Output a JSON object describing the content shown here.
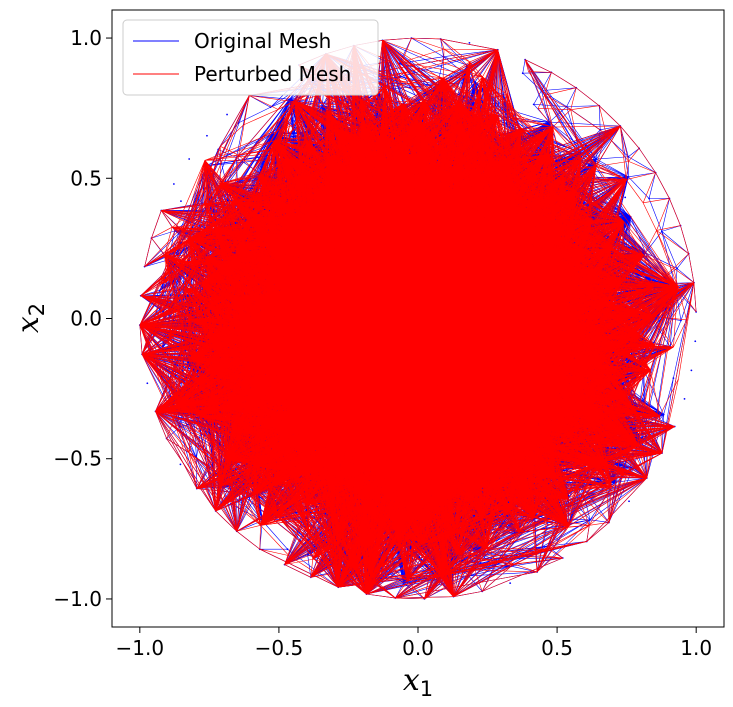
{
  "chart_data": {
    "type": "line",
    "title": "",
    "xlabel": "x",
    "xlabel_sub": "1",
    "ylabel": "x",
    "ylabel_sub": "2",
    "xlim": [
      -1.1,
      1.1
    ],
    "ylim": [
      -1.1,
      1.1
    ],
    "x_ticks": [
      -1.0,
      -0.5,
      0.0,
      0.5,
      1.0
    ],
    "x_tick_labels": [
      "−1.0",
      "−0.5",
      "0.0",
      "0.5",
      "1.0"
    ],
    "y_ticks": [
      1.0,
      0.5,
      0.0,
      -0.5,
      -1.0
    ],
    "y_tick_labels": [
      "1.0",
      "0.5",
      "0.0",
      "−0.5",
      "−1.0"
    ],
    "grid": false,
    "legend_position": "upper-left",
    "domain": {
      "shape": "disk",
      "center": [
        0,
        0
      ],
      "radius": 1.0
    },
    "series": [
      {
        "name": "Original Mesh",
        "color": "#0000ff"
      },
      {
        "name": "Perturbed Mesh",
        "color": "#ff0000"
      }
    ]
  }
}
